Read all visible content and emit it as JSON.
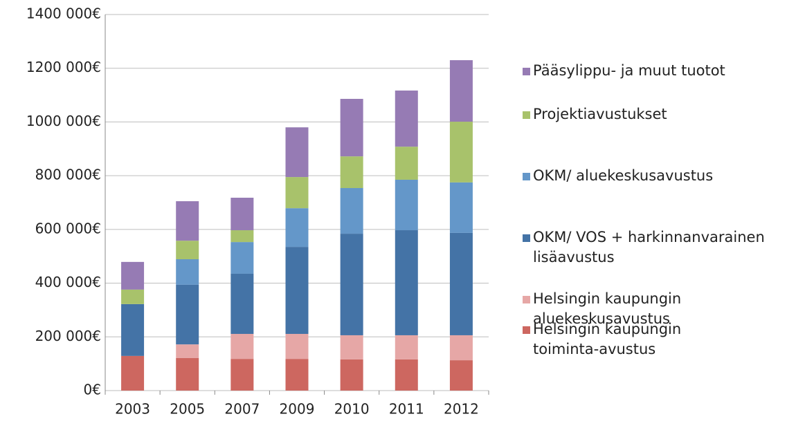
{
  "chart_data": {
    "type": "stacked-bar",
    "categories": [
      "2003",
      "2005",
      "2007",
      "2009",
      "2010",
      "2011",
      "2012"
    ],
    "series": [
      {
        "name": "Helsingin kaupungin toiminta-avustus",
        "color": "#cd6760",
        "values": [
          129000,
          121000,
          118000,
          118000,
          116000,
          116000,
          113000
        ]
      },
      {
        "name": "Helsingin kaupungin aluekeskusavustus",
        "color": "#e6a7a6",
        "values": [
          0,
          51000,
          93000,
          93000,
          90000,
          90000,
          93000
        ]
      },
      {
        "name": "OKM/ VOS + harkinnanvarainen lisäavustus",
        "color": "#4473a6",
        "values": [
          193000,
          222000,
          224000,
          324000,
          378000,
          391000,
          381000
        ]
      },
      {
        "name": "OKM/ aluekeskusavustus",
        "color": "#6497c9",
        "values": [
          0,
          95000,
          118000,
          144000,
          170000,
          188000,
          188000
        ]
      },
      {
        "name": "Projektiavustukset",
        "color": "#a8c26b",
        "values": [
          54000,
          69000,
          44000,
          116000,
          118000,
          123000,
          226000
        ]
      },
      {
        "name": "Pääsylippu- ja muut tuotot",
        "color": "#967bb4",
        "values": [
          103000,
          147000,
          121000,
          185000,
          214000,
          209000,
          229000
        ]
      }
    ],
    "ylim": [
      0,
      1400000
    ],
    "yticks": [
      {
        "value": 0,
        "label": "0€"
      },
      {
        "value": 200000,
        "label": "200 000€"
      },
      {
        "value": 400000,
        "label": "400 000€"
      },
      {
        "value": 600000,
        "label": "600 000€"
      },
      {
        "value": 800000,
        "label": "800 000€"
      },
      {
        "value": 1000000,
        "label": "1000 000€"
      },
      {
        "value": 1200000,
        "label": "1200 000€"
      },
      {
        "value": 1400000,
        "label": "1400 000€"
      }
    ],
    "grid": true
  }
}
